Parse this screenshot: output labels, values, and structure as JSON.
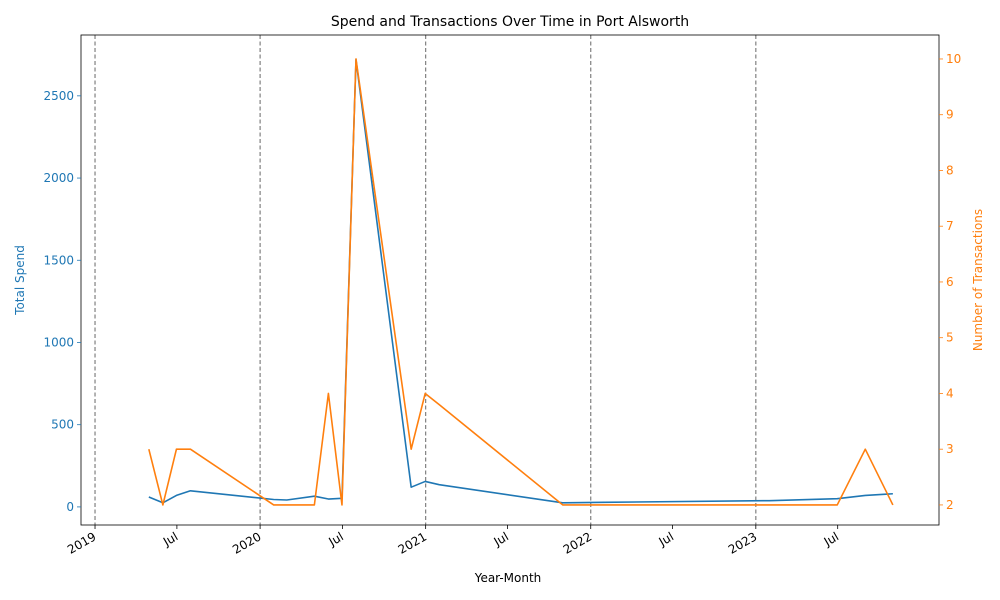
{
  "chart_data": {
    "type": "line",
    "title": "Spend and Transactions Over Time in Port Alsworth",
    "xlabel": "Year-Month",
    "y_left_label": "Total Spend",
    "y_right_label": "Number of Transactions",
    "colors": {
      "spend": "#1f77b4",
      "transactions": "#ff7f0e",
      "vline": "#808080"
    },
    "x_range": [
      "2018-12-01",
      "2024-02-10"
    ],
    "y_left_range": [
      -110,
      2870
    ],
    "y_right_range": [
      1.64,
      10.43
    ],
    "x_ticks": [
      {
        "date": "2019-01-01",
        "label": "2019"
      },
      {
        "date": "2019-07-01",
        "label": "Jul"
      },
      {
        "date": "2020-01-01",
        "label": "2020"
      },
      {
        "date": "2020-07-01",
        "label": "Jul"
      },
      {
        "date": "2021-01-01",
        "label": "2021"
      },
      {
        "date": "2021-07-01",
        "label": "Jul"
      },
      {
        "date": "2022-01-01",
        "label": "2022"
      },
      {
        "date": "2022-07-01",
        "label": "Jul"
      },
      {
        "date": "2023-01-01",
        "label": "2023"
      },
      {
        "date": "2023-07-01",
        "label": "Jul"
      }
    ],
    "y_left_ticks": [
      0,
      500,
      1000,
      1500,
      2000,
      2500
    ],
    "y_right_ticks": [
      2,
      3,
      4,
      5,
      6,
      7,
      8,
      9,
      10
    ],
    "year_lines": [
      "2019-01-01",
      "2020-01-01",
      "2021-01-01",
      "2022-01-01",
      "2023-01-01"
    ],
    "series": [
      {
        "name": "Total Spend",
        "axis": "left",
        "points": [
          [
            "2019-04-30",
            60
          ],
          [
            "2019-05-31",
            25
          ],
          [
            "2019-06-30",
            70
          ],
          [
            "2019-07-31",
            98
          ],
          [
            "2020-01-31",
            45
          ],
          [
            "2020-02-29",
            42
          ],
          [
            "2020-04-30",
            65
          ],
          [
            "2020-05-31",
            48
          ],
          [
            "2020-06-30",
            52
          ],
          [
            "2020-07-31",
            2720
          ],
          [
            "2020-11-30",
            120
          ],
          [
            "2020-12-31",
            155
          ],
          [
            "2021-01-31",
            135
          ],
          [
            "2021-10-31",
            25
          ],
          [
            "2022-01-31",
            28
          ],
          [
            "2023-01-31",
            38
          ],
          [
            "2023-06-30",
            50
          ],
          [
            "2023-08-31",
            70
          ],
          [
            "2023-10-31",
            80
          ]
        ]
      },
      {
        "name": "Number of Transactions",
        "axis": "right",
        "points": [
          [
            "2019-04-30",
            3
          ],
          [
            "2019-05-31",
            2
          ],
          [
            "2019-06-30",
            3
          ],
          [
            "2019-07-31",
            3
          ],
          [
            "2020-01-31",
            2
          ],
          [
            "2020-02-29",
            2
          ],
          [
            "2020-04-30",
            2
          ],
          [
            "2020-05-31",
            4
          ],
          [
            "2020-06-30",
            2
          ],
          [
            "2020-07-31",
            10
          ],
          [
            "2020-11-30",
            3
          ],
          [
            "2020-12-31",
            4
          ],
          [
            "2021-01-31",
            3.8
          ],
          [
            "2021-10-31",
            2
          ],
          [
            "2022-01-31",
            2
          ],
          [
            "2023-01-31",
            2
          ],
          [
            "2023-06-30",
            2
          ],
          [
            "2023-08-31",
            3
          ],
          [
            "2023-10-31",
            2
          ]
        ]
      }
    ]
  }
}
